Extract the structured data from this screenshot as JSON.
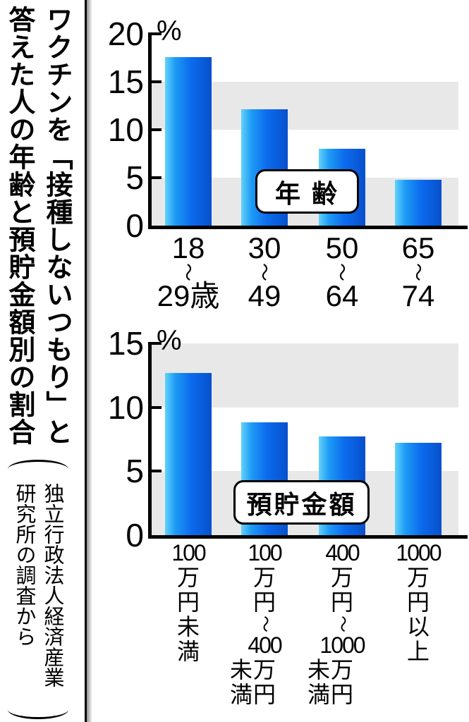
{
  "sidebar": {
    "title": "ワクチンを「接種しないつもり」と答えた人の年齢と預貯金額別の割合",
    "source": "独立行政法人経済産業研究所の調査から"
  },
  "colors": {
    "bar_gradient": [
      "#63d2fa",
      "#1e9bf5",
      "#0c6cee",
      "#0750cc"
    ],
    "band": "#e8e8e8",
    "axis": "#000000"
  },
  "chart_data": [
    {
      "type": "bar",
      "badge": "年 齢",
      "unit": "%",
      "ylim": [
        0,
        20
      ],
      "yticks": [
        20,
        15,
        10,
        5,
        0
      ],
      "grid_bands": [
        [
          15,
          10
        ],
        [
          5,
          0
        ]
      ],
      "legend_position": "none",
      "categories": [
        "18〜29歳",
        "30〜49",
        "50〜64",
        "65〜74"
      ],
      "values": [
        17.6,
        12.1,
        8.0,
        4.8
      ],
      "xlabels": [
        {
          "top": "18",
          "tilde": "〜",
          "bottom": "29歳"
        },
        {
          "top": "30",
          "tilde": "〜",
          "bottom": "49"
        },
        {
          "top": "50",
          "tilde": "〜",
          "bottom": "64"
        },
        {
          "top": "65",
          "tilde": "〜",
          "bottom": "74"
        }
      ]
    },
    {
      "type": "bar",
      "badge": "預貯金額",
      "unit": "%",
      "ylim": [
        0,
        15
      ],
      "yticks": [
        15,
        10,
        5,
        0
      ],
      "grid_bands": [
        [
          15,
          10
        ],
        [
          5,
          0
        ]
      ],
      "legend_position": "none",
      "categories": [
        "100万円未満",
        "100万円〜400万円未満",
        "400万円〜1000万円未満",
        "1000万円以上"
      ],
      "values": [
        12.7,
        8.8,
        7.7,
        7.2
      ],
      "xlabels": [
        {
          "column": [
            "100",
            "万",
            "円",
            "未",
            "満"
          ]
        },
        {
          "column": [
            "100",
            "万",
            "円",
            "〜",
            "400",
            "万",
            "円"
          ],
          "sub": {
            "chars": "未満",
            "offset": 5
          }
        },
        {
          "column": [
            "400",
            "万",
            "円",
            "〜",
            "1000",
            "万",
            "円"
          ],
          "sub": {
            "chars": "未満",
            "offset": 5
          }
        },
        {
          "column": [
            "1000",
            "万",
            "円",
            "以",
            "上"
          ]
        }
      ]
    }
  ]
}
